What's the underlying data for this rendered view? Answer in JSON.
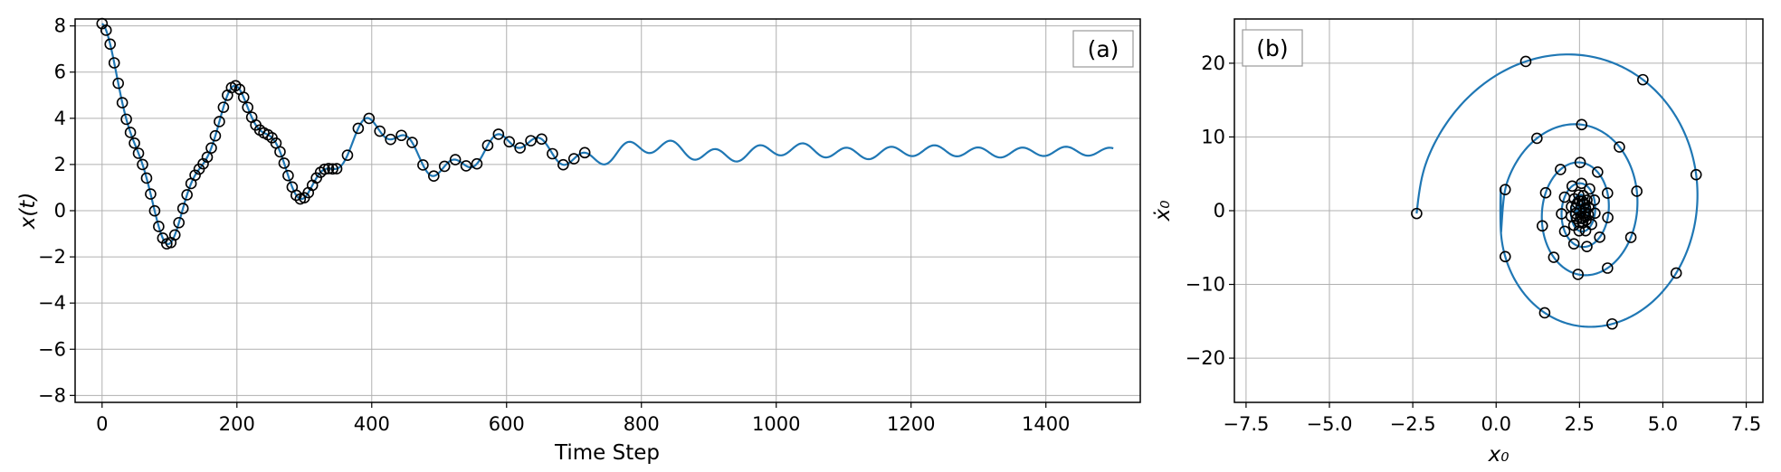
{
  "chart_data": [
    {
      "type": "line",
      "panel_label": "(a)",
      "xlabel": "Time Step",
      "ylabel": "x(t)",
      "xlim": [
        -40,
        1540
      ],
      "ylim": [
        -8.3,
        8.3
      ],
      "xticks": [
        0,
        200,
        400,
        600,
        800,
        1000,
        1200,
        1400
      ],
      "yticks": [
        -8,
        -6,
        -4,
        -2,
        0,
        2,
        4,
        6,
        8
      ],
      "grid": true,
      "line_color": "#1f77b4",
      "marker_edge_color": "#000000",
      "legend": "none",
      "signal": {
        "description_fields": "piecewise sum of two damped cosines approximating the plotted trace",
        "offset": 2.55,
        "slow": {
          "amplitude": 4.95,
          "decay": 0.0036,
          "period": 205
        },
        "fast": {
          "amplitude": 0.6,
          "decay": 0.0008,
          "period": 65
        },
        "t_max": 1500
      },
      "marker_times": [
        0,
        6,
        12,
        18,
        24,
        30,
        36,
        42,
        48,
        54,
        60,
        66,
        72,
        78,
        84,
        90,
        96,
        102,
        108,
        114,
        120,
        126,
        132,
        138,
        144,
        150,
        156,
        162,
        168,
        174,
        180,
        186,
        192,
        198,
        204,
        210,
        216,
        222,
        228,
        234,
        240,
        246,
        252,
        258,
        264,
        270,
        276,
        282,
        288,
        294,
        300,
        306,
        312,
        318,
        324,
        330,
        336,
        342,
        348,
        364,
        380,
        396,
        412,
        428,
        444,
        460,
        476,
        492,
        508,
        524,
        540,
        556,
        572,
        588,
        604,
        620,
        636,
        652,
        668,
        684,
        700,
        716
      ]
    },
    {
      "type": "line",
      "panel_label": "(b)",
      "xlabel": "x₀",
      "ylabel": "ẋ₀",
      "xlim": [
        -7.85,
        8.0
      ],
      "ylim": [
        -26,
        26
      ],
      "xticks": [
        -7.5,
        -5.0,
        -2.5,
        0.0,
        2.5,
        5.0,
        7.5
      ],
      "xtick_labels": [
        "−7.5",
        "−5.0",
        "−2.5",
        "0.0",
        "2.5",
        "5.0",
        "7.5"
      ],
      "yticks": [
        -20,
        -10,
        0,
        10,
        20
      ],
      "ytick_labels": [
        "−20",
        "−10",
        "0",
        "10",
        "20"
      ],
      "grid": true,
      "line_color": "#1f77b4",
      "marker_edge_color": "#000000",
      "legend": "none",
      "phase_portrait": {
        "center_x": 2.55,
        "sample_count": 62
      }
    }
  ]
}
